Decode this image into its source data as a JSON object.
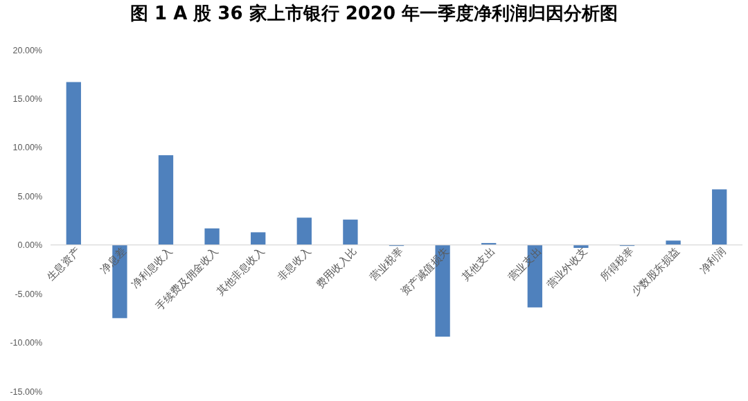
{
  "chart_data": {
    "type": "bar",
    "title": "图 1 A 股 36 家上市银行 2020 年一季度净利润归因分析图",
    "categories": [
      "生息资产",
      "净息差",
      "净利息收入",
      "手续费及佣金收入",
      "其他非息收入",
      "非息收入",
      "费用收入比",
      "营业税率",
      "资产减值损失",
      "其他支出",
      "营业支出",
      "营业外收支",
      "所得税率",
      "少数股东损益",
      "净利润"
    ],
    "values": [
      16.7,
      -7.5,
      9.2,
      1.7,
      1.3,
      2.8,
      2.6,
      -0.1,
      -9.4,
      0.2,
      -6.4,
      -0.3,
      -0.1,
      0.45,
      5.7
    ],
    "color": "#4f81bd",
    "ylim": [
      -15,
      20
    ],
    "yticks": [
      {
        "value": -15,
        "label": "-15.00%"
      },
      {
        "value": -10,
        "label": "-10.00%"
      },
      {
        "value": -5,
        "label": "-5.00%"
      },
      {
        "value": 0,
        "label": "0.00%"
      },
      {
        "value": 5,
        "label": "5.00%"
      },
      {
        "value": 10,
        "label": "10.00%"
      },
      {
        "value": 15,
        "label": "15.00%"
      },
      {
        "value": 20,
        "label": "20.00%"
      }
    ]
  }
}
